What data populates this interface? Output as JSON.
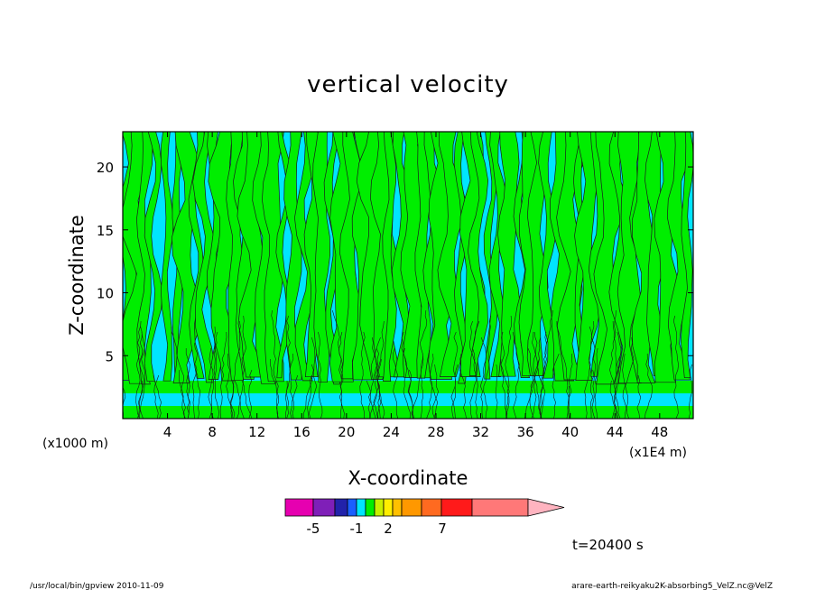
{
  "chart_data": {
    "type": "heatmap",
    "title": "vertical velocity",
    "xlabel": "X-coordinate",
    "ylabel": "Z-coordinate",
    "x_unit_left": "(x1000 m)",
    "x_unit_right": "(x1E4 m)",
    "xlim": [
      0,
      51
    ],
    "ylim": [
      0,
      22.8
    ],
    "x_ticks": [
      "4",
      "8",
      "12",
      "16",
      "20",
      "24",
      "28",
      "32",
      "36",
      "40",
      "44",
      "48"
    ],
    "y_ticks": [
      "5",
      "10",
      "15",
      "20"
    ],
    "x_tick_values": [
      4,
      8,
      12,
      16,
      20,
      24,
      28,
      32,
      36,
      40,
      44,
      48
    ],
    "y_tick_values": [
      5,
      10,
      15,
      20
    ],
    "colorbar": {
      "colors": [
        "#e600b0",
        "#7f1fb8",
        "#2222aa",
        "#1a5fff",
        "#00e5ff",
        "#00ee00",
        "#c8f000",
        "#ffee00",
        "#ffc000",
        "#ff9800",
        "#ff6a20",
        "#ff1a1a",
        "#ff7878",
        "#ffb4c0"
      ],
      "labels": [
        "-5",
        "-1",
        "2",
        "7"
      ],
      "label_positions": [
        -5,
        -1,
        2,
        7
      ],
      "range": [
        -7,
        14
      ]
    },
    "field_colors": {
      "negative": "#00e5ff",
      "positive": "#00ee00",
      "contour": "#1a1a1a"
    },
    "time_label": "t=20400 s"
  },
  "footer": {
    "left": "/usr/local/bin/gpview  2010-11-09",
    "right": "arare-earth-reikyaku2K-absorbing5_VelZ.nc@VelZ"
  }
}
